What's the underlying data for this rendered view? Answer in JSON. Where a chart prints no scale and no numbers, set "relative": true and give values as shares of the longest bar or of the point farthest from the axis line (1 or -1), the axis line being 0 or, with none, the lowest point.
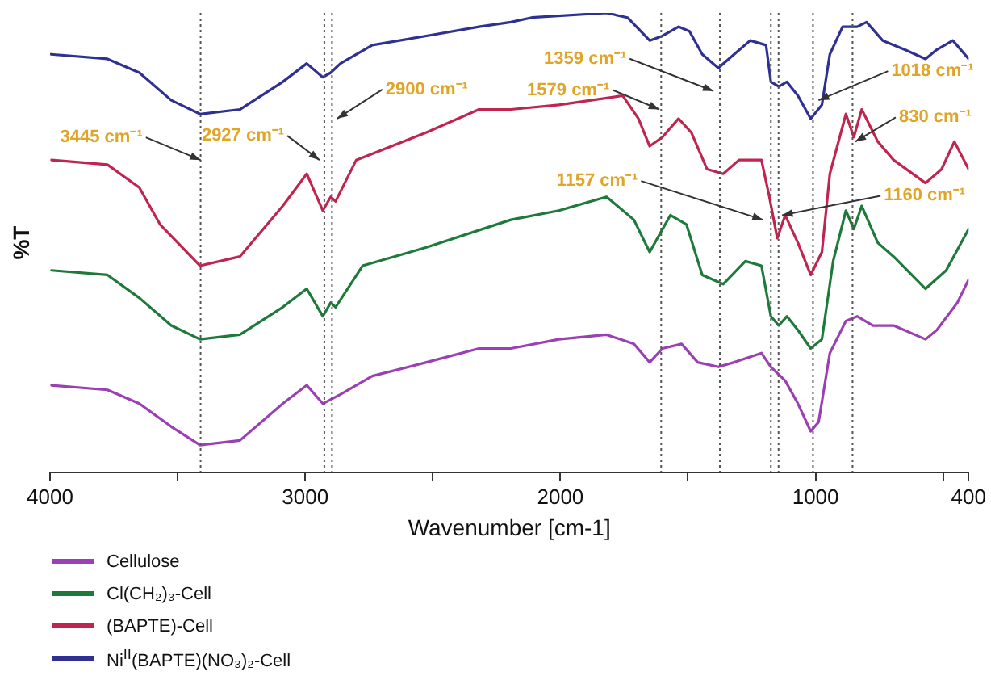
{
  "chart_data": {
    "type": "line",
    "xlabel": "Wavenumber [cm-1]",
    "ylabel": "%T",
    "relative": true,
    "xlim": [
      4000,
      400
    ],
    "xticks": [
      4000,
      {
        "value": 3500,
        "label": null
      },
      3000,
      {
        "value": 2500,
        "label": null
      },
      2000,
      {
        "value": 1500,
        "label": null
      },
      1000,
      {
        "value": 500,
        "label": null
      },
      400
    ],
    "grid": false,
    "legend": "bottom left",
    "marker": "none",
    "line_style": "solid",
    "series": [
      {
        "name": "Cellulose",
        "color": "#9b3fb5",
        "x": [
          3994,
          3775,
          3650,
          3525,
          3412,
          3256,
          3088,
          2994,
          2931,
          2862,
          2737,
          2525,
          2319,
          2194,
          2006,
          1819,
          1712,
          1650,
          1600,
          1525,
          1462,
          1381,
          1319,
          1212,
          1175,
          1119,
          1069,
          1019,
          988,
          944,
          881,
          837,
          775,
          694,
          569,
          525,
          444,
          400
        ],
        "values": [
          0.19,
          0.18,
          0.15,
          0.1,
          0.06,
          0.07,
          0.15,
          0.19,
          0.15,
          0.17,
          0.21,
          0.24,
          0.27,
          0.27,
          0.29,
          0.3,
          0.28,
          0.24,
          0.27,
          0.28,
          0.24,
          0.23,
          0.24,
          0.26,
          0.23,
          0.2,
          0.15,
          0.09,
          0.11,
          0.26,
          0.33,
          0.34,
          0.32,
          0.32,
          0.29,
          0.31,
          0.37,
          0.42
        ]
      },
      {
        "name": "Cl(CH₂)₃-Cell",
        "color": "#1e7a3a",
        "x": [
          3994,
          3775,
          3650,
          3525,
          3412,
          3256,
          3088,
          2994,
          2931,
          2900,
          2881,
          2775,
          2525,
          2194,
          2006,
          1819,
          1712,
          1650,
          1569,
          1506,
          1444,
          1362,
          1275,
          1212,
          1175,
          1144,
          1112,
          1069,
          1019,
          975,
          931,
          881,
          850,
          819,
          756,
          694,
          569,
          488,
          400
        ],
        "values": [
          0.44,
          0.43,
          0.38,
          0.32,
          0.29,
          0.3,
          0.36,
          0.4,
          0.34,
          0.37,
          0.36,
          0.45,
          0.49,
          0.55,
          0.57,
          0.6,
          0.55,
          0.48,
          0.56,
          0.54,
          0.43,
          0.41,
          0.46,
          0.45,
          0.34,
          0.32,
          0.34,
          0.31,
          0.27,
          0.29,
          0.46,
          0.57,
          0.53,
          0.58,
          0.5,
          0.47,
          0.4,
          0.44,
          0.53
        ]
      },
      {
        "name": "(BAPTE)-Cell",
        "color": "#c0254f",
        "x": [
          3994,
          3775,
          3650,
          3569,
          3412,
          3256,
          3088,
          2994,
          2931,
          2900,
          2881,
          2800,
          2525,
          2319,
          2194,
          2006,
          1756,
          1694,
          1650,
          1600,
          1537,
          1487,
          1425,
          1362,
          1300,
          1212,
          1181,
          1150,
          1119,
          1069,
          1019,
          975,
          944,
          881,
          850,
          819,
          756,
          694,
          569,
          506,
          456,
          400
        ],
        "values": [
          0.68,
          0.67,
          0.62,
          0.54,
          0.45,
          0.47,
          0.58,
          0.65,
          0.57,
          0.6,
          0.59,
          0.68,
          0.74,
          0.79,
          0.79,
          0.8,
          0.82,
          0.77,
          0.71,
          0.73,
          0.77,
          0.74,
          0.66,
          0.65,
          0.68,
          0.68,
          0.6,
          0.51,
          0.56,
          0.5,
          0.43,
          0.48,
          0.65,
          0.78,
          0.73,
          0.79,
          0.72,
          0.68,
          0.63,
          0.66,
          0.72,
          0.66
        ]
      },
      {
        "name": "Ni$^{II}$(BAPTE)(NO₃)₂-Cell",
        "color": "#2e3192",
        "x": [
          3996,
          3775,
          3650,
          3525,
          3412,
          3256,
          3088,
          2994,
          2931,
          2900,
          2862,
          2737,
          2525,
          2319,
          2194,
          2112,
          1819,
          1737,
          1650,
          1600,
          1537,
          1494,
          1444,
          1381,
          1319,
          1256,
          1194,
          1175,
          1144,
          1112,
          1069,
          1019,
          975,
          944,
          894,
          837,
          800,
          737,
          650,
          569,
          525,
          462,
          400
        ],
        "values": [
          0.91,
          0.9,
          0.87,
          0.81,
          0.78,
          0.79,
          0.85,
          0.89,
          0.86,
          0.87,
          0.89,
          0.93,
          0.95,
          0.97,
          0.98,
          0.99,
          1.0,
          0.99,
          0.94,
          0.95,
          0.97,
          0.96,
          0.91,
          0.88,
          0.91,
          0.94,
          0.93,
          0.85,
          0.84,
          0.85,
          0.82,
          0.77,
          0.8,
          0.91,
          0.97,
          0.97,
          0.98,
          0.94,
          0.92,
          0.9,
          0.92,
          0.94,
          0.9
        ]
      }
    ],
    "ref_lines": [
      {
        "axis": "x",
        "value": 3410,
        "color": "#555555",
        "line_style": "dotted"
      },
      {
        "axis": "x",
        "value": 2925,
        "color": "#555555",
        "line_style": "dotted"
      },
      {
        "axis": "x",
        "value": 2895,
        "color": "#555555",
        "line_style": "dotted"
      },
      {
        "axis": "x",
        "value": 1605,
        "color": "#555555",
        "line_style": "dotted"
      },
      {
        "axis": "x",
        "value": 1375,
        "color": "#555555",
        "line_style": "dotted"
      },
      {
        "axis": "x",
        "value": 1175,
        "color": "#555555",
        "line_style": "dotted"
      },
      {
        "axis": "x",
        "value": 1145,
        "color": "#555555",
        "line_style": "dotted"
      },
      {
        "axis": "x",
        "value": 1010,
        "color": "#555555",
        "line_style": "dotted"
      },
      {
        "axis": "x",
        "value": 855,
        "color": "#555555",
        "line_style": "dotted"
      }
    ],
    "annotations": [
      {
        "text": "3445 cm⁻¹",
        "x": 3410,
        "y": 0.68
      },
      {
        "text": "2927 cm⁻¹",
        "x": 2944,
        "y": 0.68
      },
      {
        "text": "2900 cm⁻¹",
        "x": 2875,
        "y": 0.77
      },
      {
        "text": "1359 cm⁻¹",
        "x": 1400,
        "y": 0.83
      },
      {
        "text": "1579 cm⁻¹",
        "x": 1612,
        "y": 0.79
      },
      {
        "text": "1018 cm⁻¹",
        "x": 988,
        "y": 0.81
      },
      {
        "text": "830 cm⁻¹",
        "x": 844,
        "y": 0.72
      },
      {
        "text": "1157 cm⁻¹",
        "x": 1206,
        "y": 0.55
      },
      {
        "text": "1160 cm⁻¹",
        "x": 1131,
        "y": 0.56
      }
    ]
  }
}
